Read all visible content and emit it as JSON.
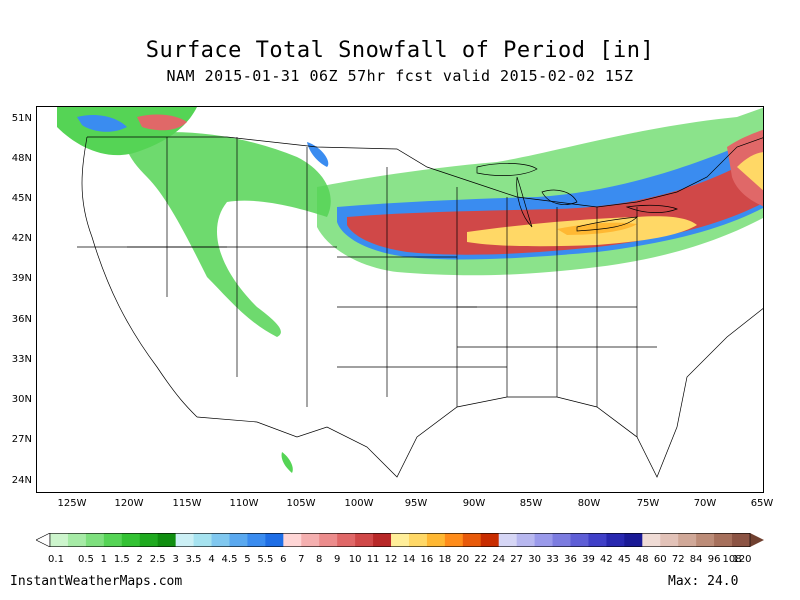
{
  "title": "Surface Total Snowfall of Period [in]",
  "subtitle": "NAM 2015-01-31 06Z 57hr fcst valid 2015-02-02 15Z",
  "lat_labels": [
    "51N",
    "48N",
    "45N",
    "42N",
    "39N",
    "36N",
    "33N",
    "30N",
    "27N",
    "24N"
  ],
  "lon_labels": [
    "125W",
    "120W",
    "115W",
    "110W",
    "105W",
    "100W",
    "95W",
    "90W",
    "85W",
    "80W",
    "75W",
    "70W",
    "65W"
  ],
  "legend": {
    "labels": [
      "0.1",
      "0.5",
      "1",
      "1.5",
      "2",
      "2.5",
      "3",
      "3.5",
      "4",
      "4.5",
      "5",
      "5.5",
      "6",
      "7",
      "8",
      "9",
      "10",
      "11",
      "12",
      "14",
      "16",
      "18",
      "20",
      "22",
      "24",
      "27",
      "30",
      "33",
      "36",
      "39",
      "42",
      "45",
      "48",
      "60",
      "72",
      "84",
      "96",
      "108",
      "120"
    ],
    "colors": [
      "#ccf5cc",
      "#a6eba6",
      "#7ee07e",
      "#55d455",
      "#33c233",
      "#1faa1f",
      "#108e10",
      "#ccf0f5",
      "#a6e3f0",
      "#80c8f0",
      "#5aa9f0",
      "#3a8cf0",
      "#1e6ee6",
      "#ffd6d6",
      "#f5b0b0",
      "#ec8c8c",
      "#e06868",
      "#d04848",
      "#b82828",
      "#ffee99",
      "#ffd866",
      "#ffb833",
      "#ff8c1a",
      "#e85a0a",
      "#c82c00",
      "#d6d6f5",
      "#b8b8f0",
      "#9a9aeb",
      "#7c7ce0",
      "#5e5ed6",
      "#4040c8",
      "#2828b0",
      "#1a1a96",
      "#f0dcd6",
      "#e2c2b8",
      "#d0a898",
      "#bc8c78",
      "#a6705c",
      "#8c5444"
    ],
    "low_color": "#ffffff",
    "high_color": "#704030"
  },
  "footer": {
    "site": "InstantWeatherMaps.com",
    "max_text": "Max:  24.0"
  }
}
